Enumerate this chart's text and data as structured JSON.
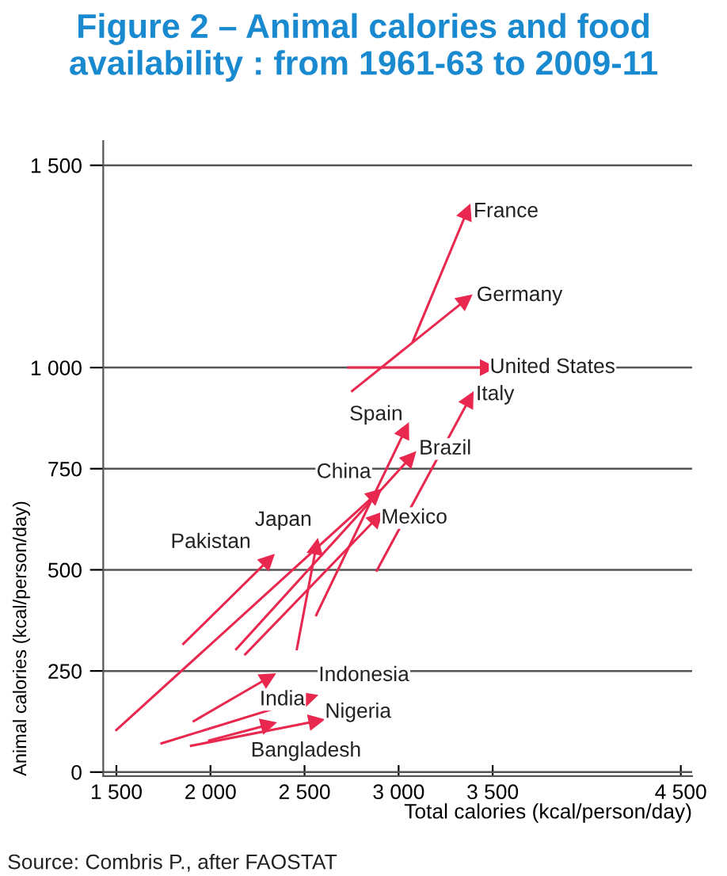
{
  "chart_data": {
    "type": "line",
    "title": "Figure 2 – Animal calories and food availability : from 1961-63 to 2009-11",
    "xlabel": "Total calories (kcal/person/day)",
    "ylabel": "Animal calories (kcal/person/day)",
    "annotations": [
      "Source: Combris P., after FAOSTAT"
    ],
    "xlim": [
      1430,
      4560
    ],
    "ylim": [
      -10,
      1560
    ],
    "xticks": [
      {
        "value": 1500,
        "label": "1 500"
      },
      {
        "value": 2000,
        "label": "2 000"
      },
      {
        "value": 2500,
        "label": "2 500"
      },
      {
        "value": 3000,
        "label": "3 000"
      },
      {
        "value": 3500,
        "label": "3 500"
      },
      {
        "value": 4500,
        "label": "4 500"
      }
    ],
    "yticks": [
      0,
      250,
      500,
      750,
      {
        "value": 1000,
        "label": "1 000"
      },
      {
        "value": 1500,
        "label": "1 500"
      }
    ],
    "grid": "y",
    "marker": "triangle",
    "line_style": "solid",
    "series": [
      {
        "name": "France",
        "color": "#e8284f",
        "x": [
          3075,
          3363
        ],
        "values": [
          1064,
          1385
        ]
      },
      {
        "name": "Germany",
        "color": "#e8284f",
        "x": [
          2753,
          3356
        ],
        "values": [
          942,
          1167
        ]
      },
      {
        "name": "United States",
        "color": "#e8284f",
        "x": [
          2733,
          3473
        ],
        "values": [
          1000,
          1000
        ]
      },
      {
        "name": "Italy",
        "color": "#e8284f",
        "x": [
          2884,
          3376
        ],
        "values": [
          498,
          922
        ]
      },
      {
        "name": "Spain",
        "color": "#e8284f",
        "x": [
          2562,
          3034
        ],
        "values": [
          388,
          845
        ]
      },
      {
        "name": "Brazil",
        "color": "#e8284f",
        "x": [
          2137,
          3062
        ],
        "values": [
          304,
          777
        ]
      },
      {
        "name": "China",
        "color": "#e8284f",
        "x": [
          1500,
          2877
        ],
        "values": [
          104,
          686
        ]
      },
      {
        "name": "Mexico",
        "color": "#e8284f",
        "x": [
          2185,
          2884
        ],
        "values": [
          291,
          628
        ]
      },
      {
        "name": "Japan",
        "color": "#e8284f",
        "x": [
          2459,
          2562
        ],
        "values": [
          304,
          557
        ]
      },
      {
        "name": "Pakistan",
        "color": "#e8284f",
        "x": [
          1856,
          2308
        ],
        "values": [
          317,
          524
        ]
      },
      {
        "name": "India",
        "color": "#e8284f",
        "x": [
          1911,
          2308
        ],
        "values": [
          126,
          233
        ]
      },
      {
        "name": "Indonesia",
        "color": "#e8284f",
        "x": [
          1740,
          2528
        ],
        "values": [
          71,
          184
        ]
      },
      {
        "name": "Nigeria",
        "color": "#e8284f",
        "x": [
          1897,
          2562
        ],
        "values": [
          65,
          126
        ]
      },
      {
        "name": "Bangladesh",
        "color": "#e8284f",
        "x": [
          1993,
          2308
        ],
        "values": [
          78,
          117
        ]
      }
    ]
  }
}
